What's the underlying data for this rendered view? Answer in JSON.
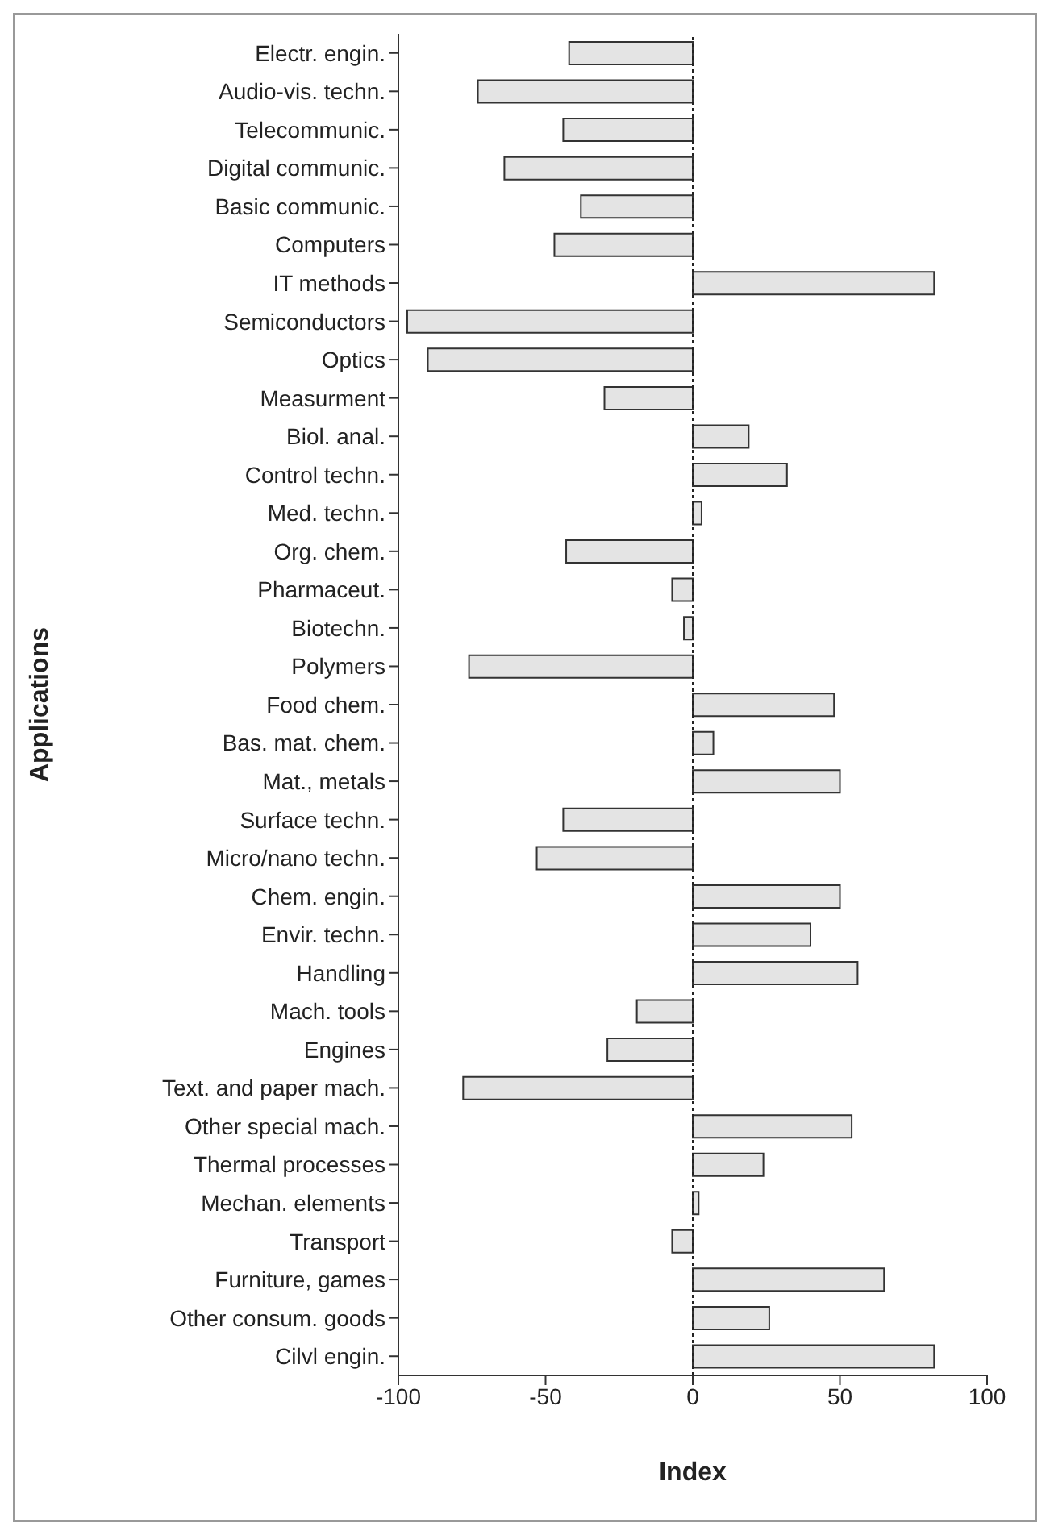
{
  "chart_data": {
    "type": "bar",
    "orientation": "horizontal",
    "xlabel": "Index",
    "ylabel": "Applications",
    "categories": [
      "Electr. engin.",
      "Audio-vis. techn.",
      "Telecommunic.",
      "Digital communic.",
      "Basic communic.",
      "Computers",
      "IT methods",
      "Semiconductors",
      "Optics",
      "Measurment",
      "Biol. anal.",
      "Control techn.",
      "Med. techn.",
      "Org. chem.",
      "Pharmaceut.",
      "Biotechn.",
      "Polymers",
      "Food chem.",
      "Bas. mat. chem.",
      "Mat., metals",
      "Surface techn.",
      "Micro/nano techn.",
      "Chem. engin.",
      "Envir. techn.",
      "Handling",
      "Mach. tools",
      "Engines",
      "Text. and paper mach.",
      "Other special mach.",
      "Thermal processes",
      "Mechan. elements",
      "Transport",
      "Furniture, games",
      "Other consum. goods",
      "Cilvl engin."
    ],
    "values": [
      -42,
      -73,
      -44,
      -64,
      -38,
      -47,
      82,
      -97,
      -90,
      -30,
      19,
      32,
      3,
      -43,
      -7,
      -3,
      -76,
      48,
      7,
      50,
      -44,
      -53,
      50,
      40,
      56,
      -19,
      -29,
      -78,
      54,
      24,
      2,
      -7,
      65,
      26,
      82
    ],
    "color": "#e4e4e4",
    "xlim": [
      -100,
      100
    ],
    "xticks": [
      -100,
      -50,
      0,
      50,
      100
    ],
    "ref_lines": [
      {
        "axis": "x",
        "value": 0,
        "color": "#222222",
        "line_style": "dotted"
      }
    ],
    "grid": false,
    "legend": false
  }
}
